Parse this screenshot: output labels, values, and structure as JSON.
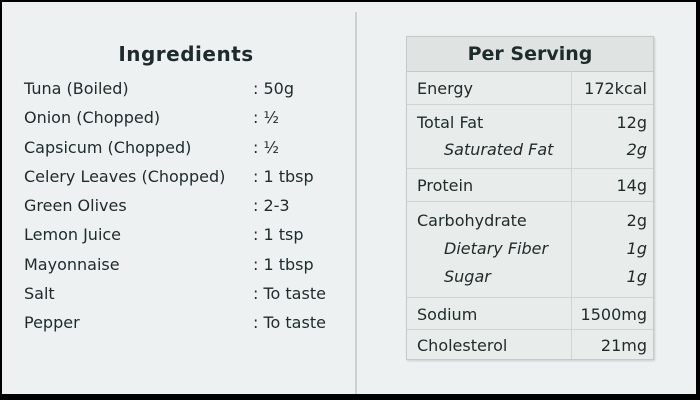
{
  "ingredients": {
    "title": "Ingredients",
    "items": [
      {
        "name": "Tuna (Boiled)",
        "qty": ": 50g"
      },
      {
        "name": "Onion (Chopped)",
        "qty": ": ½"
      },
      {
        "name": "Capsicum (Chopped)",
        "qty": ": ½"
      },
      {
        "name": "Celery Leaves (Chopped)",
        "qty": ": 1 tbsp"
      },
      {
        "name": "Green Olives",
        "qty": ": 2-3"
      },
      {
        "name": "Lemon Juice",
        "qty": ": 1 tsp"
      },
      {
        "name": "Mayonnaise",
        "qty": ": 1 tbsp"
      },
      {
        "name": "Salt",
        "qty": ": To taste"
      },
      {
        "name": "Pepper",
        "qty": ": To taste"
      }
    ]
  },
  "nutrition": {
    "title": "Per Serving",
    "energy": {
      "label": "Energy",
      "value": "172kcal"
    },
    "total_fat": {
      "label": "Total Fat",
      "value": "12g"
    },
    "saturated_fat": {
      "label": "Saturated Fat",
      "value": "2g"
    },
    "protein": {
      "label": "Protein",
      "value": "14g"
    },
    "carbohydrate": {
      "label": "Carbohydrate",
      "value": "2g"
    },
    "dietary_fiber": {
      "label": "Dietary Fiber",
      "value": "1g"
    },
    "sugar": {
      "label": "Sugar",
      "value": "1g"
    },
    "sodium": {
      "label": "Sodium",
      "value": "1500mg"
    },
    "cholesterol": {
      "label": "Cholesterol",
      "value": "21mg"
    }
  }
}
